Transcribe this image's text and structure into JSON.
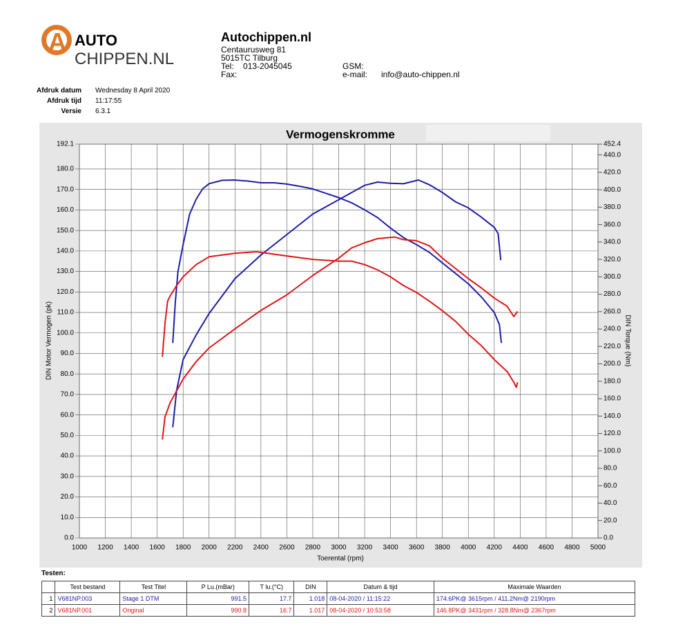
{
  "header": {
    "logo_big": "A",
    "logo_top": "AUTO",
    "logo_bottom": "CHIPPEN.NL",
    "company": "Autochippen.nl",
    "address": [
      "Centaurusweg 81",
      "5015TC Tilburg"
    ],
    "tel_label": "Tel:",
    "tel": "013-2045045",
    "fax_label": "Fax:",
    "gsm_label": "GSM:",
    "email_label": "e-mail:",
    "email": "info@auto-chippen.nl",
    "info": [
      {
        "label": "Afdruk datum",
        "value": "Wednesday 8 April 2020"
      },
      {
        "label": "Afdruk tijd",
        "value": "11:17:55"
      },
      {
        "label": "Versie",
        "value": "6.3.1"
      }
    ]
  },
  "chart_data": {
    "type": "line",
    "title": "Vermogenskromme",
    "x_label": "Toerental (rpm)",
    "y_label": "DIN Motor Vermogen (pk)",
    "y2_label": "DIN Torque (Nm)",
    "xlim": [
      1000,
      5000
    ],
    "xticks": [
      1000,
      1200,
      1400,
      1600,
      1800,
      2000,
      2200,
      2400,
      2600,
      2800,
      3000,
      3200,
      3400,
      3600,
      3800,
      4000,
      4200,
      4400,
      4600,
      4800,
      5000
    ],
    "ylim": [
      0,
      192.1
    ],
    "yticks": [
      {
        "value": 0,
        "label": "0.0"
      },
      {
        "value": 10,
        "label": "10.0"
      },
      {
        "value": 20,
        "label": "20.0"
      },
      {
        "value": 30,
        "label": "30.0"
      },
      {
        "value": 40,
        "label": "40.0"
      },
      {
        "value": 50,
        "label": "50.0"
      },
      {
        "value": 60,
        "label": "60.0"
      },
      {
        "value": 70,
        "label": "70.0"
      },
      {
        "value": 80,
        "label": "80.0"
      },
      {
        "value": 90,
        "label": "90.0"
      },
      {
        "value": 100,
        "label": "100.0"
      },
      {
        "value": 110,
        "label": "110.0"
      },
      {
        "value": 120,
        "label": "120.0"
      },
      {
        "value": 130,
        "label": "130.0"
      },
      {
        "value": 140,
        "label": "140.0"
      },
      {
        "value": 150,
        "label": "150.0"
      },
      {
        "value": 160,
        "label": "160.0"
      },
      {
        "value": 170,
        "label": "170.0"
      },
      {
        "value": 180,
        "label": "180.0"
      },
      192.1
    ],
    "y2lim": [
      0,
      452.4
    ],
    "y2ticks": [
      {
        "value": 0,
        "label": "0.0"
      },
      {
        "value": 20,
        "label": "20.0"
      },
      {
        "value": 40,
        "label": "40.0"
      },
      {
        "value": 60,
        "label": "60.0"
      },
      {
        "value": 80,
        "label": "80.0"
      },
      {
        "value": 100,
        "label": "100.0"
      },
      {
        "value": 120,
        "label": "120.0"
      },
      {
        "value": 140,
        "label": "140.0"
      },
      {
        "value": 160,
        "label": "160.0"
      },
      {
        "value": 180,
        "label": "180.0"
      },
      {
        "value": 200,
        "label": "200.0"
      },
      {
        "value": 220,
        "label": "220.0"
      },
      {
        "value": 240,
        "label": "240.0"
      },
      {
        "value": 260,
        "label": "260.0"
      },
      {
        "value": 280,
        "label": "280.0"
      },
      {
        "value": 300,
        "label": "300.0"
      },
      {
        "value": 320,
        "label": "320.0"
      },
      {
        "value": 340,
        "label": "340.0"
      },
      {
        "value": 360,
        "label": "360.0"
      },
      {
        "value": 380,
        "label": "380.0"
      },
      {
        "value": 400,
        "label": "400.0"
      },
      {
        "value": 420,
        "label": "420.0"
      },
      {
        "value": 440,
        "label": "440.0"
      },
      452.4
    ],
    "grid": true,
    "series": [
      {
        "color": "#1c1ca8",
        "axis": "y",
        "x": [
          1720,
          1750,
          1800,
          1900,
          2000,
          2200,
          2400,
          2600,
          2800,
          3000,
          3200,
          3300,
          3400,
          3500,
          3615,
          3700,
          3800,
          3900,
          4000,
          4100,
          4200,
          4230,
          4250
        ],
        "values": [
          54,
          72,
          87,
          99,
          109.5,
          126.5,
          138,
          148,
          158,
          165,
          172,
          173.6,
          173,
          172.8,
          174.6,
          172.3,
          168.5,
          164,
          161,
          156.5,
          151.5,
          148.5,
          135.5
        ]
      },
      {
        "color": "#1c1ca8",
        "axis": "y2",
        "x": [
          1720,
          1740,
          1760,
          1800,
          1850,
          1900,
          1950,
          2000,
          2100,
          2190,
          2300,
          2400,
          2500,
          2600,
          2700,
          2800,
          2900,
          3000,
          3100,
          3200,
          3300,
          3400,
          3500,
          3600,
          3700,
          3800,
          3900,
          4000,
          4100,
          4200,
          4240,
          4255
        ],
        "values": [
          224,
          271,
          306,
          337,
          372,
          389,
          401,
          407,
          410.8,
          411.2,
          410,
          408,
          408,
          406.5,
          404,
          401,
          396,
          391,
          385,
          377,
          368,
          356,
          345,
          337,
          328,
          316,
          304,
          292,
          277,
          259,
          245,
          224
        ]
      },
      {
        "color": "#e01414",
        "axis": "y",
        "x": [
          1640,
          1660,
          1700,
          1800,
          1900,
          2000,
          2200,
          2400,
          2600,
          2800,
          3000,
          3100,
          3200,
          3300,
          3431,
          3500,
          3600,
          3700,
          3800,
          3900,
          4000,
          4100,
          4200,
          4300,
          4350,
          4380
        ],
        "values": [
          48,
          59,
          66,
          77.5,
          86,
          92.7,
          102,
          111,
          118.6,
          128,
          136.5,
          141.5,
          144,
          146,
          146.8,
          145.5,
          145,
          142.5,
          136.5,
          131.5,
          126.5,
          122,
          117,
          113,
          108,
          110.5
        ]
      },
      {
        "color": "#e01414",
        "axis": "y2",
        "x": [
          1640,
          1660,
          1680,
          1700,
          1750,
          1800,
          1900,
          2000,
          2200,
          2367,
          2500,
          2600,
          2800,
          3000,
          3100,
          3200,
          3300,
          3400,
          3500,
          3600,
          3700,
          3800,
          3900,
          4000,
          4100,
          4200,
          4300,
          4350,
          4370,
          4380
        ],
        "values": [
          208,
          246,
          272,
          278,
          290,
          300,
          314,
          323,
          327,
          328.8,
          326,
          324,
          320,
          318,
          318,
          314,
          308,
          300,
          290,
          282,
          272,
          261,
          249,
          234,
          221,
          205,
          191,
          179,
          173,
          179
        ]
      }
    ]
  },
  "table": {
    "label": "Testen:",
    "columns": [
      "",
      "Test bestand",
      "Test Titel",
      "P Lu.(mBar)",
      "T lu.(°C)",
      "DIN",
      "Datum & tijd",
      "Maximale Waarden"
    ],
    "rows": [
      [
        1,
        "V681NP.003",
        "Stage 1 DTM",
        991.5,
        17.7,
        1.018,
        "08-04-2020 / 11:15:22",
        "174.6PK@ 3615rpm / 411.2Nm@ 2190rpm"
      ],
      [
        2,
        "V681NP.001",
        "Original",
        990.8,
        16.7,
        1.017,
        "08-04-2020 / 10:53:58",
        "146.8PK@ 3431rpm / 328.8Nm@ 2367rpm"
      ]
    ]
  }
}
